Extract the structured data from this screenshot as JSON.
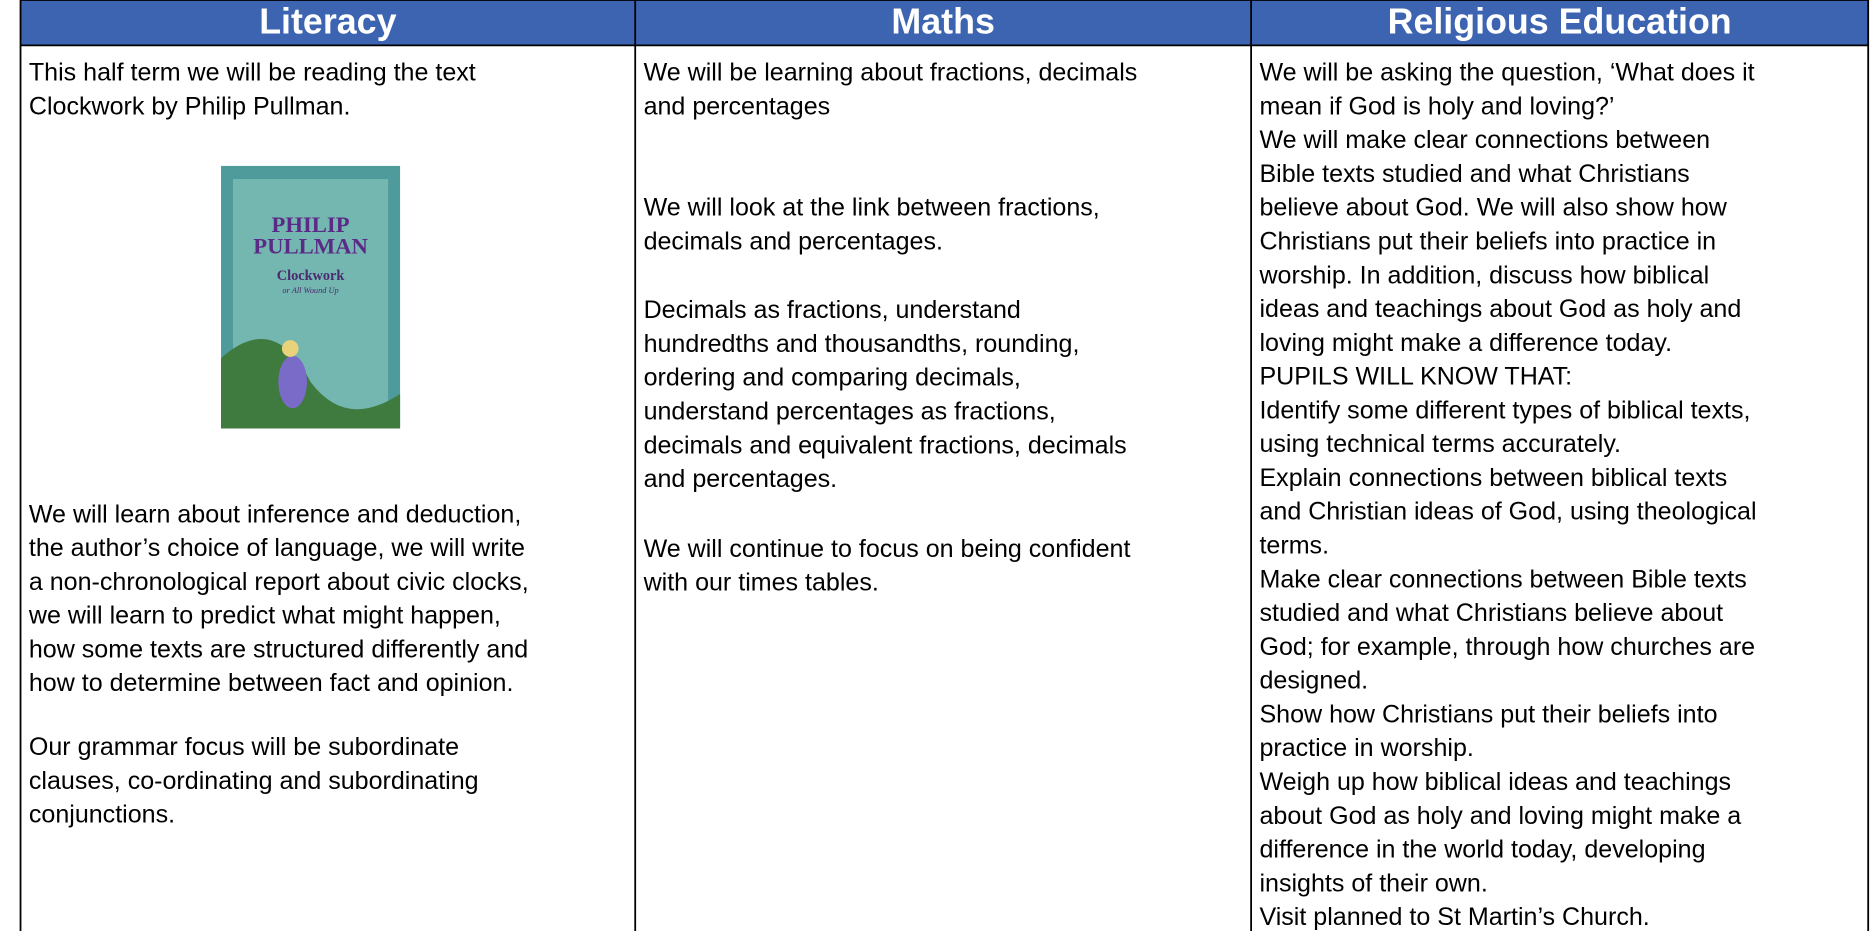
{
  "columns": [
    {
      "header": "Literacy",
      "blocks": [
        [
          "This half term we will be reading the text",
          "Clockwork by Philip Pullman."
        ],
        [
          "We will learn about inference and deduction,",
          "the author’s choice of language, we will write",
          "a non-chronological report about civic clocks,",
          "we will learn to predict what might happen,",
          "how some texts are structured differently and",
          "how to determine between fact and opinion."
        ],
        [
          "Our grammar focus will be subordinate",
          "clauses, co-ordinating and subordinating",
          "conjunctions."
        ]
      ],
      "cover": {
        "author": [
          "PHILIP",
          "PULLMAN"
        ],
        "title": "Clockwork",
        "subtitle": "or All Wound Up"
      }
    },
    {
      "header": "Maths",
      "blocks": [
        [
          "We will be learning about fractions, decimals",
          "and percentages"
        ],
        [
          "We will look at the link between fractions,",
          "decimals and percentages."
        ],
        [
          "Decimals as fractions, understand",
          "hundredths and thousandths, rounding,",
          "ordering and comparing decimals,",
          "understand percentages as fractions,",
          "decimals and equivalent fractions, decimals",
          "and percentages."
        ],
        [
          "We will continue to focus on being confident",
          "with our times tables."
        ]
      ]
    },
    {
      "header": "Religious Education",
      "blocks": [
        [
          "We will be asking the question, ‘What does it",
          "mean if God is holy and loving?’",
          "We will make clear connections between",
          "Bible texts studied and what Christians",
          "believe about God. We will also show how",
          "Christians put their beliefs into practice in",
          "worship.   In addition, discuss how biblical",
          "ideas and teachings about God as holy and",
          "loving might make a difference today.",
          "PUPILS WILL KNOW THAT:",
          "Identify some different types of biblical texts,",
          "using technical terms accurately.",
          "Explain connections between biblical texts",
          "and Christian ideas of God, using theological",
          "terms.",
          "Make clear connections between Bible texts",
          "studied and what Christians believe about",
          "God; for example, through how churches are",
          "designed.",
          "Show how Christians put their beliefs into",
          "practice in worship.",
          "Weigh up how biblical ideas and teachings",
          "about God as holy and loving might make a",
          "difference in the world today, developing",
          "insights of their own.",
          "Visit planned to St Martin’s Church."
        ]
      ]
    }
  ]
}
